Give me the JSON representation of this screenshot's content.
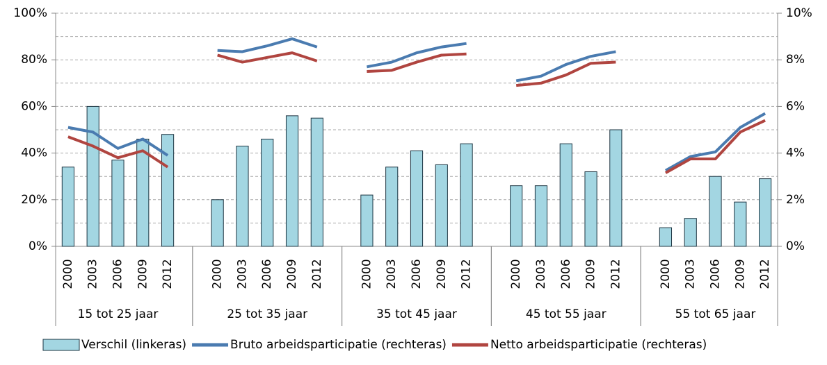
{
  "chart_data": {
    "type": "bar-line",
    "categories": [
      "2000",
      "2003",
      "2006",
      "2009",
      "2012",
      null,
      "2000",
      "2003",
      "2006",
      "2009",
      "2012",
      null,
      "2000",
      "2003",
      "2006",
      "2009",
      "2012",
      null,
      "2000",
      "2003",
      "2006",
      "2009",
      "2012",
      null,
      "2000",
      "2003",
      "2006",
      "2009",
      "2012"
    ],
    "groups": [
      "15 tot 25 jaar",
      "25 tot 35 jaar",
      "35 tot 45 jaar",
      "45 tot 55 jaar",
      "55 tot 65 jaar"
    ],
    "series": [
      {
        "name": "Verschil (linkeras)",
        "type": "bar",
        "color": "#a3d6e2",
        "values": [
          34,
          60,
          37,
          46,
          48,
          null,
          20,
          43,
          46,
          56,
          55,
          null,
          22,
          34,
          41,
          35,
          44,
          null,
          26,
          26,
          44,
          32,
          50,
          null,
          8,
          12,
          30,
          19,
          29
        ]
      },
      {
        "name": "Bruto arbeidsparticipatie (rechteras)",
        "type": "line",
        "axis": "y2",
        "color": "#4a7bb0",
        "values": [
          5.1,
          4.9,
          4.2,
          4.6,
          3.9,
          null,
          8.4,
          8.35,
          8.6,
          8.9,
          8.55,
          null,
          7.7,
          7.9,
          8.3,
          8.55,
          8.7,
          null,
          7.1,
          7.3,
          7.8,
          8.15,
          8.35,
          null,
          3.25,
          3.85,
          4.05,
          5.1,
          5.7
        ]
      },
      {
        "name": "Netto arbeidsparticipatie (rechteras)",
        "type": "line",
        "axis": "y2",
        "color": "#b04540",
        "values": [
          4.7,
          4.3,
          3.8,
          4.1,
          3.4,
          null,
          8.2,
          7.9,
          8.1,
          8.3,
          7.95,
          null,
          7.5,
          7.55,
          7.9,
          8.2,
          8.25,
          null,
          6.9,
          7.0,
          7.35,
          7.85,
          7.9,
          null,
          3.15,
          3.75,
          3.75,
          4.9,
          5.4
        ]
      }
    ],
    "ylim": [
      0,
      100
    ],
    "yticks": [
      {
        "value": 0,
        "label": "0%"
      },
      {
        "value": 20,
        "label": "20%"
      },
      {
        "value": 40,
        "label": "40%"
      },
      {
        "value": 60,
        "label": "60%"
      },
      {
        "value": 80,
        "label": "80%"
      },
      {
        "value": 100,
        "label": "100%"
      }
    ],
    "minor_grid": [
      10,
      30,
      50,
      70,
      90
    ],
    "y2lim": [
      0,
      10
    ],
    "y2ticks": [
      {
        "value": 0,
        "label": "0%"
      },
      {
        "value": 2,
        "label": "2%"
      },
      {
        "value": 4,
        "label": "4%"
      },
      {
        "value": 6,
        "label": "6%"
      },
      {
        "value": 8,
        "label": "8%"
      },
      {
        "value": 10,
        "label": "10%"
      }
    ],
    "grid": true,
    "legend": "bottom"
  }
}
